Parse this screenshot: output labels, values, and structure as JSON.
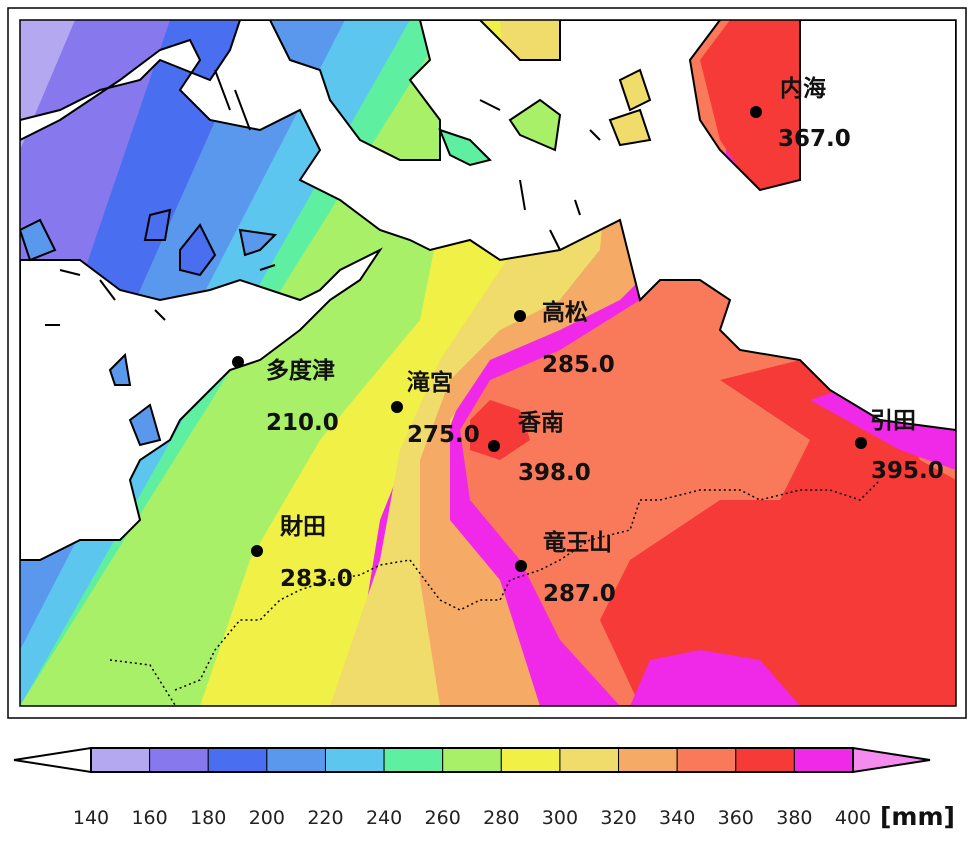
{
  "map": {
    "stations": [
      {
        "id": "uchiumi",
        "name": "内海",
        "value": "367.0"
      },
      {
        "id": "takamatsu",
        "name": "高松",
        "value": "285.0"
      },
      {
        "id": "tadotsu",
        "name": "多度津",
        "value": "210.0"
      },
      {
        "id": "takinomiya",
        "name": "滝宮",
        "value": "275.0"
      },
      {
        "id": "konan",
        "name": "香南",
        "value": "398.0"
      },
      {
        "id": "hiketa",
        "name": "引田",
        "value": "395.0"
      },
      {
        "id": "zaita",
        "name": "財田",
        "value": "283.0"
      },
      {
        "id": "ryuozan",
        "name": "竜王山",
        "value": "287.0"
      }
    ]
  },
  "colorbar": {
    "ticks": [
      "140",
      "160",
      "180",
      "200",
      "220",
      "240",
      "260",
      "280",
      "300",
      "320",
      "340",
      "360",
      "380",
      "400"
    ],
    "unit": "[mm]",
    "colors": [
      "#b4a8f0",
      "#8878ee",
      "#4a6ef0",
      "#5a98ee",
      "#5cc6ee",
      "#5ef0a0",
      "#a8f068",
      "#f0f046",
      "#f0dc6a",
      "#f5aa66",
      "#f87a5a",
      "#f53a38",
      "#f028e8"
    ],
    "under_color": "#ffffff",
    "over_color": "#f48cf0"
  }
}
